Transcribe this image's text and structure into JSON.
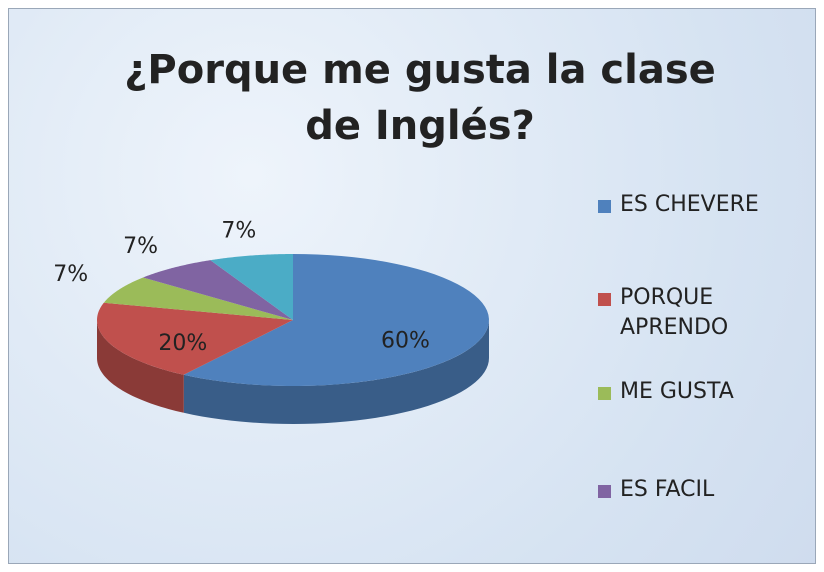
{
  "chart_data": {
    "type": "pie3d",
    "title": "¿Porque me gusta la clase de Inglés?",
    "categories": [
      "ES CHEVERE",
      "PORQUE APRENDO",
      "ME GUSTA",
      "ES FACIL",
      null
    ],
    "values": [
      60,
      20,
      7,
      7,
      7
    ],
    "value_labels": [
      "60%",
      "20%",
      "7%",
      "7%",
      "7%"
    ],
    "colors": [
      "#4f81bd",
      "#c0504d",
      "#9bbb59",
      "#8064a2",
      "#4bacc6"
    ],
    "legend": "right"
  }
}
